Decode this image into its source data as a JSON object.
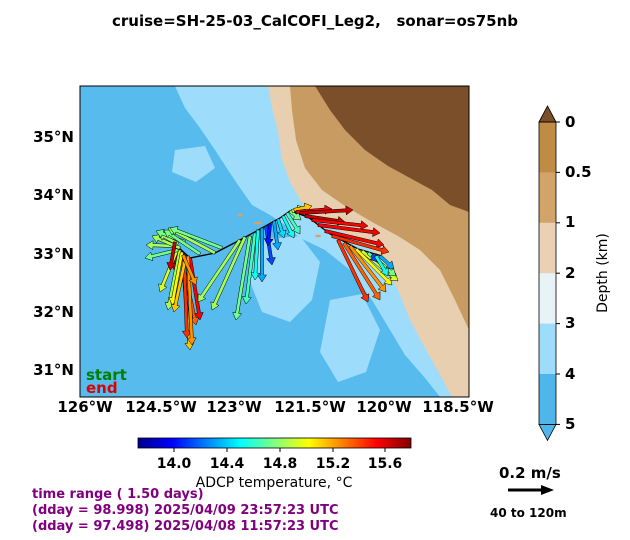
{
  "title": "cruise=SH-25-03_CalCOFI_Leg2,   sonar=os75nb",
  "map": {
    "x_ticks": [
      "126°W",
      "124.5°W",
      "123°W",
      "121.5°W",
      "120°W",
      "118.5°W"
    ],
    "y_ticks": [
      "35°N",
      "34°N",
      "33°N",
      "32°N",
      "31°N"
    ],
    "start_label": "start",
    "end_label": "end",
    "colors": {
      "deep_ocean": "#57bbee",
      "shelf_ocean": "#9ddcfa",
      "land_dark": "#7b4f2a",
      "land_mid": "#c89b63",
      "land_light": "#e8cfb0",
      "start": "#008000",
      "end": "#dd0000"
    }
  },
  "depth_colorbar": {
    "label": "Depth (km)",
    "ticks": [
      "0",
      "0.5",
      "1",
      "2",
      "3",
      "4",
      "5"
    ],
    "colors": [
      "#c08b45",
      "#d3a46a",
      "#ead1b3",
      "#e8f3f8",
      "#9ddcfa",
      "#4fb6ec"
    ]
  },
  "temp_colorbar": {
    "label": "ADCP temperature, °C",
    "ticks": [
      "14.0",
      "14.4",
      "14.8",
      "15.2",
      "15.6"
    ],
    "vmin": 13.8,
    "vmax": 15.85
  },
  "scale": {
    "label": "0.2 m/s",
    "depth_range": "40 to 120m"
  },
  "time": {
    "range": "time range ( 1.50 days)",
    "end": "(dday = 98.998) 2025/04/09 23:57:23 UTC",
    "start": "(dday = 97.498) 2025/04/08 11:57:23 UTC"
  }
}
